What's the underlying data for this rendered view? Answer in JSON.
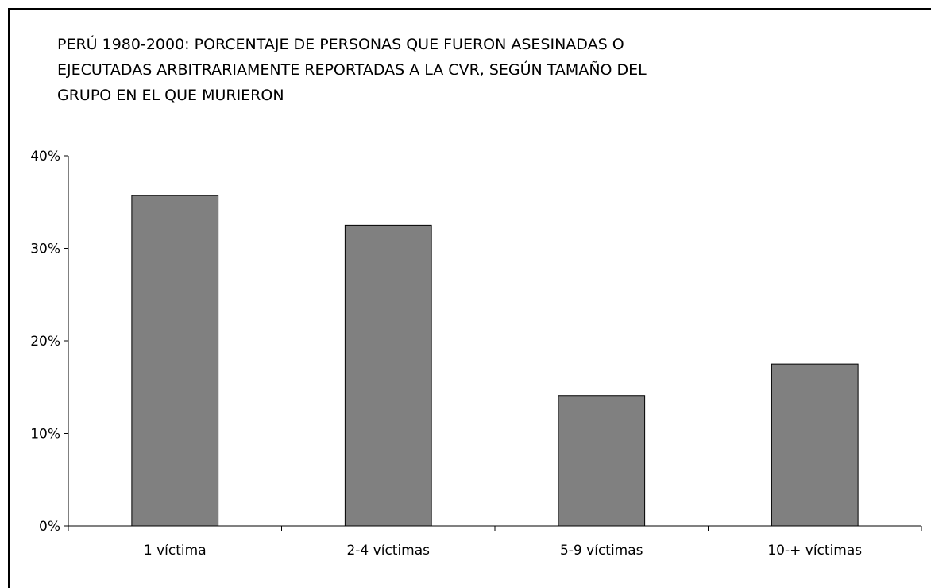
{
  "chart_data": {
    "type": "bar",
    "title": "PERÚ 1980-2000: PORCENTAJE DE PERSONAS QUE FUERON ASESINADAS O\nEJECUTADAS ARBITRARIAMENTE REPORTADAS A LA CVR, SEGÚN TAMAÑO DEL\nGRUPO EN EL QUE MURIERON",
    "categories": [
      "1 víctima",
      "2-4 víctimas",
      "5-9 víctimas",
      "10-+ víctimas"
    ],
    "values": [
      35.7,
      32.5,
      14.1,
      17.5
    ],
    "xlabel": "",
    "ylabel": "",
    "ylim": [
      0,
      40
    ],
    "yticks": [
      0,
      10,
      20,
      30,
      40
    ],
    "ytick_labels": [
      "0%",
      "10%",
      "20%",
      "30%",
      "40%"
    ],
    "grid": false,
    "legend": "none",
    "bar_color": "#808080"
  }
}
